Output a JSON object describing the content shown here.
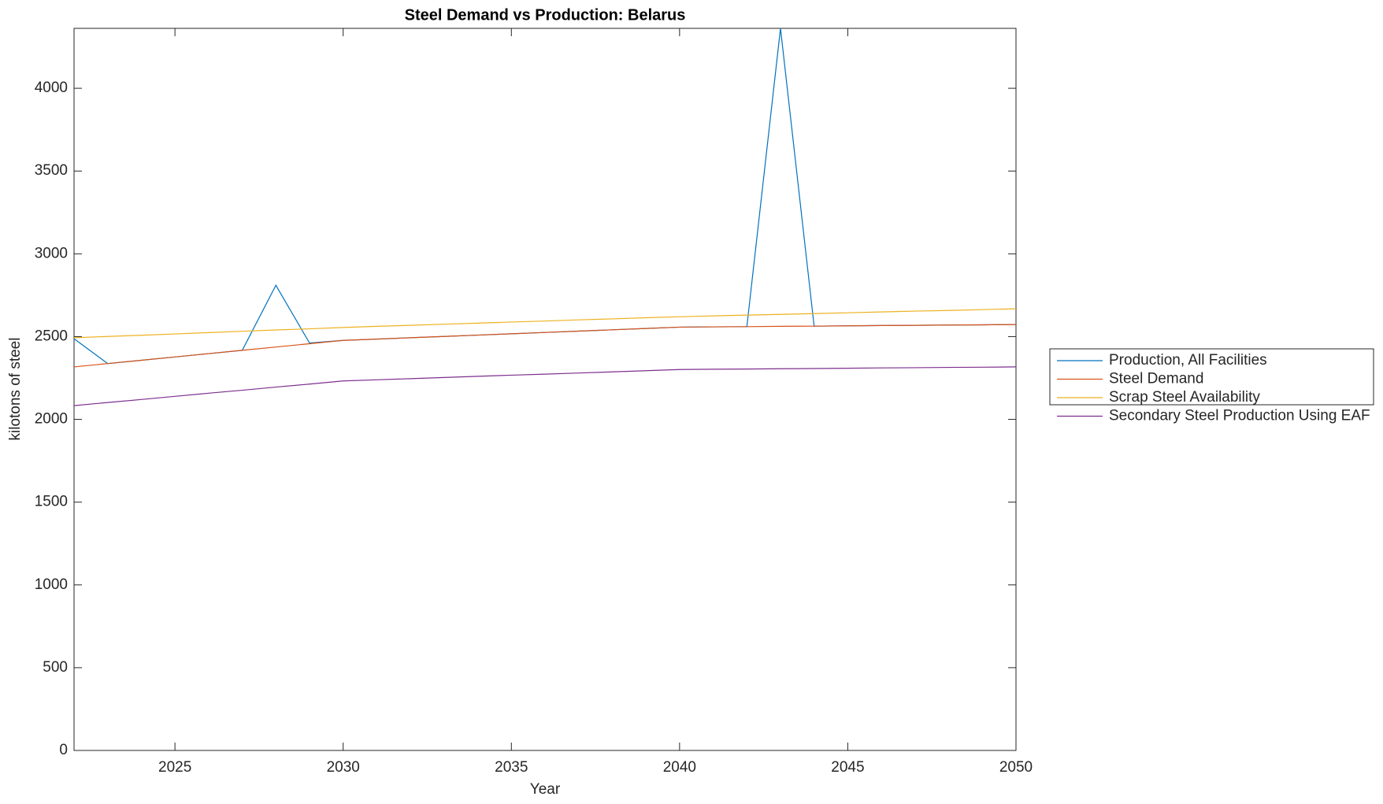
{
  "chart_data": {
    "type": "line",
    "title": "Steel Demand vs Production: Belarus",
    "x_label": "Year",
    "y_label": "kilotons of steel",
    "x": [
      2022,
      2023,
      2024,
      2025,
      2026,
      2027,
      2028,
      2029,
      2030,
      2031,
      2032,
      2033,
      2034,
      2035,
      2036,
      2037,
      2038,
      2039,
      2040,
      2041,
      2042,
      2043,
      2044,
      2045,
      2046,
      2047,
      2048,
      2049,
      2050
    ],
    "series": [
      {
        "name": "Production, All Facilities",
        "color": "#0072BD",
        "values": [
          2487,
          2337,
          2357,
          2377,
          2397,
          2417,
          2810,
          2461,
          2477,
          2485,
          2493,
          2501,
          2509,
          2517,
          2525,
          2533,
          2541,
          2549,
          2557,
          2559,
          2560,
          4362,
          2563,
          2565,
          2567,
          2568,
          2570,
          2571,
          2573
        ]
      },
      {
        "name": "Steel Demand",
        "color": "#D95319",
        "values": [
          2317,
          2337,
          2357,
          2377,
          2397,
          2417,
          2437,
          2457,
          2477,
          2485,
          2493,
          2501,
          2509,
          2517,
          2525,
          2533,
          2541,
          2549,
          2557,
          2559,
          2560,
          2562,
          2563,
          2565,
          2567,
          2568,
          2570,
          2571,
          2573
        ]
      },
      {
        "name": "Scrap Steel Availability",
        "color": "#EDB120",
        "values": [
          2493,
          2501,
          2508,
          2516,
          2524,
          2532,
          2540,
          2547,
          2555,
          2562,
          2568,
          2575,
          2581,
          2588,
          2594,
          2601,
          2607,
          2614,
          2620,
          2625,
          2630,
          2634,
          2639,
          2644,
          2649,
          2654,
          2658,
          2663,
          2668
        ]
      },
      {
        "name": "Secondary Steel Production Using EAF",
        "color": "#7E2F8E",
        "values": [
          2083,
          2102,
          2120,
          2139,
          2158,
          2176,
          2195,
          2213,
          2232,
          2239,
          2246,
          2253,
          2260,
          2267,
          2273,
          2280,
          2287,
          2294,
          2301,
          2303,
          2304,
          2306,
          2307,
          2309,
          2311,
          2312,
          2314,
          2315,
          2317
        ]
      }
    ],
    "xlim": [
      2022,
      2050
    ],
    "xticks": [
      2025,
      2030,
      2035,
      2040,
      2045,
      2050
    ],
    "ylim": [
      0,
      4362
    ],
    "yticks": [
      0,
      500,
      1000,
      1500,
      2000,
      2500,
      3000,
      3500,
      4000
    ],
    "grid": false,
    "legend": "outside-right"
  }
}
